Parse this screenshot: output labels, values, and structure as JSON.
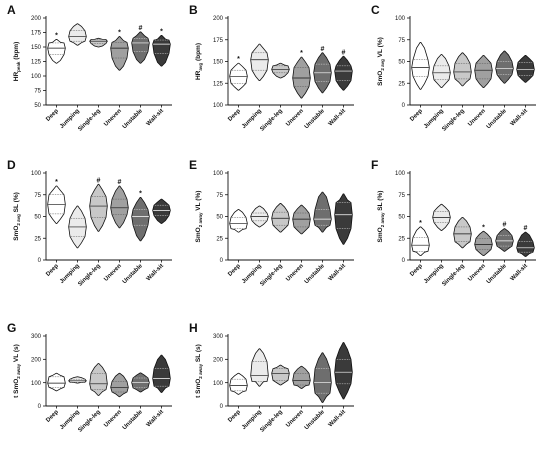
{
  "categories": [
    "Deep",
    "Jumping",
    "Single-leg",
    "Uneven",
    "Unstable",
    "Wall-sit"
  ],
  "fill_colors": [
    "#ffffff",
    "#ebebeb",
    "#c8c8c8",
    "#a0a0a0",
    "#6e6e6e",
    "#3a3a3a"
  ],
  "chart_data": [
    {
      "type": "violin",
      "panel": "A",
      "ylabel_main": "HR",
      "ylabel_sub": "peak",
      "ylabel_suffix": " (bpm)",
      "ylim": [
        50,
        200
      ],
      "yticks": [
        50,
        75,
        100,
        125,
        150,
        175,
        200
      ],
      "violins": [
        {
          "category": "Deep",
          "min": 122,
          "max": 163,
          "median": 148,
          "q1": 137,
          "q3": 157
        },
        {
          "category": "Jumping",
          "min": 153,
          "max": 190,
          "median": 168,
          "q1": 160,
          "q3": 178
        },
        {
          "category": "Single-leg",
          "min": 150,
          "max": 165,
          "median": 160,
          "q1": 156,
          "q3": 163
        },
        {
          "category": "Uneven",
          "min": 110,
          "max": 168,
          "median": 148,
          "q1": 131,
          "q3": 158
        },
        {
          "category": "Unstable",
          "min": 122,
          "max": 176,
          "median": 157,
          "q1": 142,
          "q3": 165
        },
        {
          "category": "Wall-sit",
          "min": 117,
          "max": 170,
          "median": 155,
          "q1": 139,
          "q3": 162
        }
      ],
      "significance_marks": [
        {
          "category": "Deep",
          "label": "*"
        },
        {
          "category": "Uneven",
          "label": "*"
        },
        {
          "category": "Unstable",
          "label": "#"
        },
        {
          "category": "Wall-sit",
          "label": "*"
        }
      ]
    },
    {
      "type": "violin",
      "panel": "B",
      "ylabel_main": "HR",
      "ylabel_sub": "avg",
      "ylabel_suffix": " (bpm)",
      "ylim": [
        100,
        200
      ],
      "yticks": [
        100,
        125,
        150,
        175,
        200
      ],
      "violins": [
        {
          "category": "Deep",
          "min": 117,
          "max": 148,
          "median": 133,
          "q1": 125,
          "q3": 140
        },
        {
          "category": "Jumping",
          "min": 128,
          "max": 170,
          "median": 152,
          "q1": 140,
          "q3": 160
        },
        {
          "category": "Single-leg",
          "min": 131,
          "max": 148,
          "median": 141,
          "q1": 137,
          "q3": 145
        },
        {
          "category": "Uneven",
          "min": 108,
          "max": 155,
          "median": 131,
          "q1": 121,
          "q3": 143
        },
        {
          "category": "Unstable",
          "min": 114,
          "max": 160,
          "median": 137,
          "q1": 127,
          "q3": 147
        },
        {
          "category": "Wall-sit",
          "min": 117,
          "max": 156,
          "median": 139,
          "q1": 128,
          "q3": 145
        }
      ],
      "significance_marks": [
        {
          "category": "Deep",
          "label": "*"
        },
        {
          "category": "Uneven",
          "label": "*"
        },
        {
          "category": "Unstable",
          "label": "#"
        },
        {
          "category": "Wall-sit",
          "label": "#"
        }
      ]
    },
    {
      "type": "violin",
      "panel": "C",
      "ylabel_main": "SmO",
      "ylabel_sub": "2 avg",
      "ylabel_suffix": " VL (%)",
      "ylim": [
        0,
        100
      ],
      "yticks": [
        0,
        25,
        50,
        75,
        100
      ],
      "violins": [
        {
          "category": "Deep",
          "min": 18,
          "max": 72,
          "median": 43,
          "q1": 33,
          "q3": 52
        },
        {
          "category": "Jumping",
          "min": 20,
          "max": 58,
          "median": 37,
          "q1": 29,
          "q3": 45
        },
        {
          "category": "Single-leg",
          "min": 22,
          "max": 60,
          "median": 38,
          "q1": 30,
          "q3": 48
        },
        {
          "category": "Uneven",
          "min": 20,
          "max": 57,
          "median": 40,
          "q1": 30,
          "q3": 48
        },
        {
          "category": "Unstable",
          "min": 25,
          "max": 62,
          "median": 42,
          "q1": 35,
          "q3": 50
        },
        {
          "category": "Wall-sit",
          "min": 26,
          "max": 57,
          "median": 41,
          "q1": 34,
          "q3": 49
        }
      ],
      "significance_marks": []
    },
    {
      "type": "violin",
      "panel": "D",
      "ylabel_main": "SmO",
      "ylabel_sub": "2 avg",
      "ylabel_suffix": " SL (%)",
      "ylim": [
        0,
        100
      ],
      "yticks": [
        0,
        25,
        50,
        75,
        100
      ],
      "violins": [
        {
          "category": "Deep",
          "min": 42,
          "max": 85,
          "median": 64,
          "q1": 53,
          "q3": 75
        },
        {
          "category": "Jumping",
          "min": 14,
          "max": 62,
          "median": 38,
          "q1": 27,
          "q3": 48
        },
        {
          "category": "Single-leg",
          "min": 33,
          "max": 87,
          "median": 62,
          "q1": 49,
          "q3": 73
        },
        {
          "category": "Uneven",
          "min": 37,
          "max": 85,
          "median": 60,
          "q1": 52,
          "q3": 70
        },
        {
          "category": "Unstable",
          "min": 22,
          "max": 72,
          "median": 50,
          "q1": 40,
          "q3": 58
        },
        {
          "category": "Wall-sit",
          "min": 42,
          "max": 70,
          "median": 57,
          "q1": 51,
          "q3": 63
        }
      ],
      "significance_marks": [
        {
          "category": "Deep",
          "label": "*"
        },
        {
          "category": "Single-leg",
          "label": "#"
        },
        {
          "category": "Uneven",
          "label": "#"
        },
        {
          "category": "Unstable",
          "label": "*"
        }
      ]
    },
    {
      "type": "violin",
      "panel": "E",
      "ylabel_main": "SmO",
      "ylabel_sub": "2 away",
      "ylabel_suffix": " VL (%)",
      "ylim": [
        0,
        100
      ],
      "yticks": [
        0,
        25,
        50,
        75,
        100
      ],
      "violins": [
        {
          "category": "Deep",
          "min": 32,
          "max": 58,
          "median": 42,
          "q1": 36,
          "q3": 49
        },
        {
          "category": "Jumping",
          "min": 38,
          "max": 62,
          "median": 50,
          "q1": 45,
          "q3": 54
        },
        {
          "category": "Single-leg",
          "min": 32,
          "max": 65,
          "median": 48,
          "q1": 40,
          "q3": 55
        },
        {
          "category": "Uneven",
          "min": 30,
          "max": 63,
          "median": 47,
          "q1": 38,
          "q3": 54
        },
        {
          "category": "Unstable",
          "min": 32,
          "max": 78,
          "median": 47,
          "q1": 40,
          "q3": 58
        },
        {
          "category": "Wall-sit",
          "min": 18,
          "max": 76,
          "median": 52,
          "q1": 36,
          "q3": 66
        }
      ],
      "significance_marks": []
    },
    {
      "type": "violin",
      "panel": "F",
      "ylabel_main": "SmO",
      "ylabel_sub": "2 away",
      "ylabel_suffix": " SL (%)",
      "ylim": [
        0,
        100
      ],
      "yticks": [
        0,
        25,
        50,
        75,
        100
      ],
      "violins": [
        {
          "category": "Deep",
          "min": 5,
          "max": 38,
          "median": 17,
          "q1": 10,
          "q3": 26
        },
        {
          "category": "Jumping",
          "min": 34,
          "max": 64,
          "median": 49,
          "q1": 43,
          "q3": 56
        },
        {
          "category": "Single-leg",
          "min": 14,
          "max": 49,
          "median": 30,
          "q1": 21,
          "q3": 38
        },
        {
          "category": "Uneven",
          "min": 5,
          "max": 33,
          "median": 18,
          "q1": 12,
          "q3": 25
        },
        {
          "category": "Unstable",
          "min": 10,
          "max": 36,
          "median": 22,
          "q1": 16,
          "q3": 28
        },
        {
          "category": "Wall-sit",
          "min": 4,
          "max": 32,
          "median": 14,
          "q1": 9,
          "q3": 21
        }
      ],
      "significance_marks": [
        {
          "category": "Deep",
          "label": "*"
        },
        {
          "category": "Uneven",
          "label": "*"
        },
        {
          "category": "Unstable",
          "label": "#"
        },
        {
          "category": "Wall-sit",
          "label": "#"
        }
      ]
    },
    {
      "type": "violin",
      "panel": "G",
      "ylabel_main": "t SmO",
      "ylabel_sub": "2 away",
      "ylabel_suffix": " VL (s)",
      "ylim": [
        0,
        300
      ],
      "yticks": [
        0,
        100,
        200,
        300
      ],
      "violins": [
        {
          "category": "Deep",
          "min": 65,
          "max": 140,
          "median": 98,
          "q1": 80,
          "q3": 125
        },
        {
          "category": "Jumping",
          "min": 98,
          "max": 125,
          "median": 108,
          "q1": 102,
          "q3": 115
        },
        {
          "category": "Single-leg",
          "min": 45,
          "max": 182,
          "median": 95,
          "q1": 70,
          "q3": 140
        },
        {
          "category": "Uneven",
          "min": 40,
          "max": 140,
          "median": 80,
          "q1": 60,
          "q3": 105
        },
        {
          "category": "Unstable",
          "min": 60,
          "max": 142,
          "median": 100,
          "q1": 78,
          "q3": 120
        },
        {
          "category": "Wall-sit",
          "min": 58,
          "max": 218,
          "median": 118,
          "q1": 85,
          "q3": 160
        }
      ],
      "significance_marks": []
    },
    {
      "type": "violin",
      "panel": "H",
      "ylabel_main": "t SmO",
      "ylabel_sub": "2 away",
      "ylabel_suffix": " SL (s)",
      "ylim": [
        0,
        300
      ],
      "yticks": [
        0,
        100,
        200,
        300
      ],
      "violins": [
        {
          "category": "Deep",
          "min": 50,
          "max": 140,
          "median": 88,
          "q1": 65,
          "q3": 115
        },
        {
          "category": "Jumping",
          "min": 85,
          "max": 245,
          "median": 130,
          "q1": 105,
          "q3": 190
        },
        {
          "category": "Single-leg",
          "min": 90,
          "max": 175,
          "median": 140,
          "q1": 110,
          "q3": 160
        },
        {
          "category": "Uneven",
          "min": 75,
          "max": 170,
          "median": 110,
          "q1": 90,
          "q3": 140
        },
        {
          "category": "Unstable",
          "min": 15,
          "max": 228,
          "median": 100,
          "q1": 55,
          "q3": 160
        },
        {
          "category": "Wall-sit",
          "min": 30,
          "max": 272,
          "median": 145,
          "q1": 95,
          "q3": 200
        }
      ],
      "significance_marks": []
    }
  ]
}
